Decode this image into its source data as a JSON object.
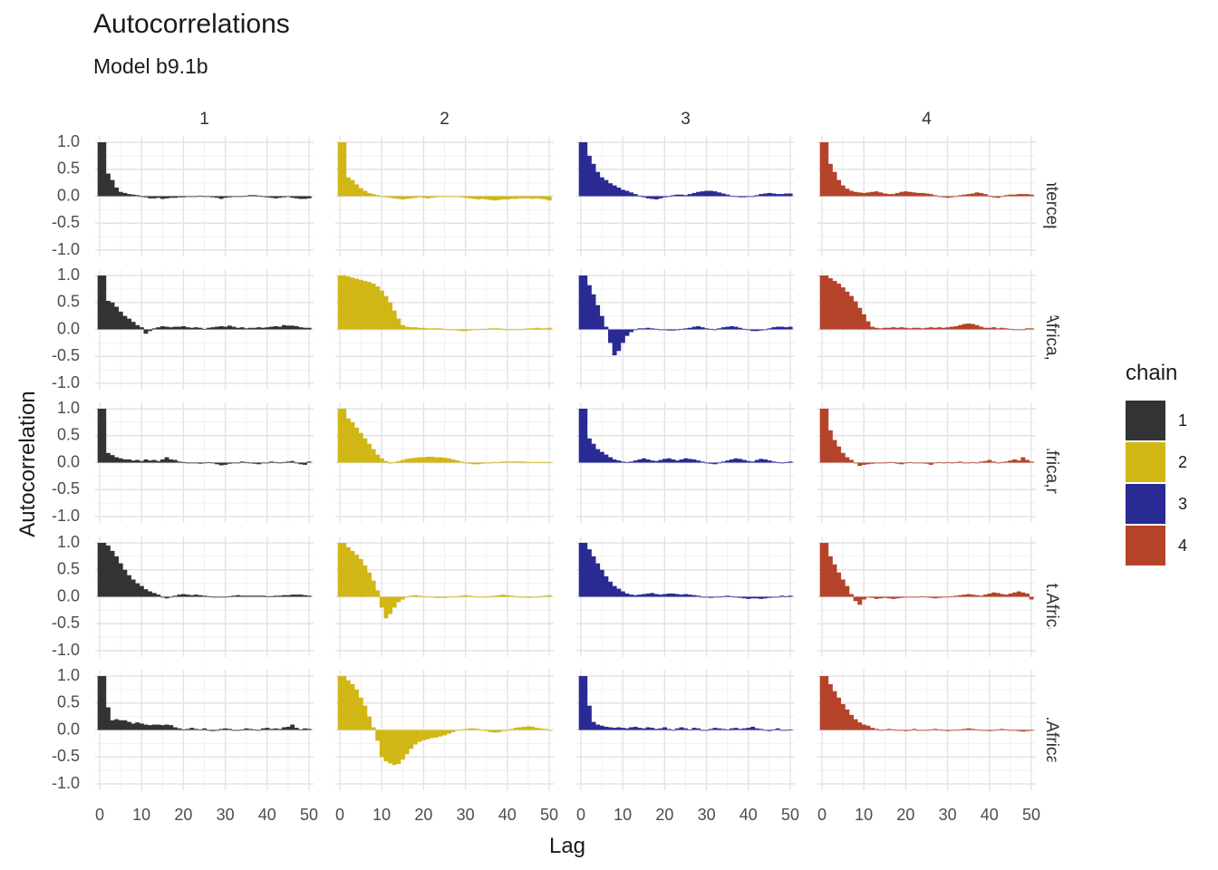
{
  "chart_data": {
    "type": "bar",
    "title": "Autocorrelations",
    "subtitle": "Model b9.1b",
    "xlabel": "Lag",
    "ylabel": "Autocorrelation",
    "xlim": [
      0,
      50
    ],
    "ylim": [
      -1.0,
      1.0
    ],
    "xticks": [
      0,
      10,
      20,
      30,
      40,
      50
    ],
    "yticks": [
      -1.0,
      -0.5,
      0.0,
      0.5,
      1.0
    ],
    "ytick_labels": [
      "-1.0",
      "-0.5",
      "0.0",
      "0.5",
      "1.0"
    ],
    "facet_columns": [
      "1",
      "2",
      "3",
      "4"
    ],
    "facet_rows": [
      "a__Intercept_",
      "rica[Africa,Int",
      "ica[Africa,rug",
      "a[Not.Africa,I",
      "a[Not.Africa,ru"
    ],
    "legend": {
      "title": "chain",
      "entries": [
        {
          "label": "1",
          "color": "#333333"
        },
        {
          "label": "2",
          "color": "#D1B716"
        },
        {
          "label": "3",
          "color": "#2A2A94"
        },
        {
          "label": "4",
          "color": "#B5432A"
        }
      ]
    },
    "note": "Each panel shows autocorrelation values at lags 0-50 for one parameter (row) and one chain (column).",
    "series": [
      [
        [
          1.0,
          1.0,
          0.42,
          0.3,
          0.16,
          0.08,
          0.06,
          0.04,
          0.03,
          0.02,
          0.0,
          -0.02,
          -0.04,
          -0.04,
          -0.03,
          -0.05,
          -0.04,
          -0.03,
          -0.03,
          -0.02,
          -0.02,
          -0.01,
          0.0,
          0.0,
          0.01,
          0.0,
          -0.01,
          -0.02,
          -0.03,
          -0.05,
          -0.03,
          -0.02,
          -0.01,
          -0.01,
          0.0,
          0.01,
          0.02,
          0.02,
          0.01,
          0.0,
          -0.02,
          -0.03,
          -0.04,
          -0.03,
          -0.02,
          -0.01,
          -0.03,
          -0.04,
          -0.05,
          -0.05,
          -0.04
        ],
        [
          1.0,
          1.0,
          0.35,
          0.3,
          0.22,
          0.15,
          0.1,
          0.06,
          0.04,
          0.02,
          0.0,
          -0.02,
          -0.03,
          -0.04,
          -0.05,
          -0.06,
          -0.05,
          -0.04,
          -0.03,
          -0.02,
          -0.03,
          -0.04,
          -0.03,
          -0.02,
          -0.01,
          0.0,
          0.0,
          0.0,
          -0.01,
          -0.02,
          -0.03,
          -0.04,
          -0.05,
          -0.06,
          -0.05,
          -0.06,
          -0.07,
          -0.08,
          -0.07,
          -0.06,
          -0.06,
          -0.05,
          -0.05,
          -0.04,
          -0.04,
          -0.04,
          -0.05,
          -0.04,
          -0.05,
          -0.06,
          -0.08
        ],
        [
          1.0,
          1.0,
          0.75,
          0.6,
          0.45,
          0.35,
          0.3,
          0.24,
          0.2,
          0.16,
          0.12,
          0.1,
          0.07,
          0.04,
          0.01,
          -0.02,
          -0.04,
          -0.05,
          -0.06,
          -0.04,
          -0.02,
          0.0,
          0.02,
          0.03,
          0.03,
          0.02,
          0.04,
          0.06,
          0.08,
          0.09,
          0.1,
          0.1,
          0.09,
          0.07,
          0.05,
          0.03,
          0.01,
          -0.01,
          -0.02,
          -0.02,
          -0.01,
          0.0,
          0.02,
          0.04,
          0.05,
          0.06,
          0.05,
          0.04,
          0.04,
          0.05,
          0.05
        ],
        [
          1.0,
          1.0,
          0.6,
          0.45,
          0.3,
          0.2,
          0.14,
          0.1,
          0.08,
          0.07,
          0.06,
          0.07,
          0.08,
          0.09,
          0.07,
          0.05,
          0.04,
          0.04,
          0.06,
          0.08,
          0.09,
          0.08,
          0.07,
          0.06,
          0.06,
          0.05,
          0.04,
          0.02,
          0.0,
          -0.02,
          -0.03,
          -0.02,
          0.0,
          0.02,
          0.03,
          0.04,
          0.05,
          0.07,
          0.06,
          0.04,
          0.01,
          -0.02,
          -0.03,
          0.0,
          0.02,
          0.03,
          0.03,
          0.04,
          0.04,
          0.04,
          0.03
        ]
      ],
      [
        [
          1.0,
          1.0,
          0.53,
          0.5,
          0.42,
          0.33,
          0.25,
          0.2,
          0.14,
          0.08,
          0.04,
          -0.08,
          -0.03,
          0.02,
          0.04,
          0.06,
          0.05,
          0.04,
          0.05,
          0.05,
          0.06,
          0.04,
          0.03,
          0.04,
          0.03,
          0.01,
          0.03,
          0.04,
          0.05,
          0.06,
          0.05,
          0.07,
          0.05,
          0.03,
          0.04,
          0.02,
          0.03,
          0.03,
          0.04,
          0.03,
          0.04,
          0.05,
          0.06,
          0.05,
          0.08,
          0.07,
          0.07,
          0.06,
          0.04,
          0.03,
          0.03
        ],
        [
          1.0,
          1.0,
          0.98,
          0.96,
          0.94,
          0.92,
          0.9,
          0.88,
          0.85,
          0.8,
          0.72,
          0.62,
          0.5,
          0.35,
          0.2,
          0.08,
          0.05,
          0.04,
          0.04,
          0.03,
          0.03,
          0.02,
          0.02,
          0.02,
          0.02,
          0.01,
          0.0,
          -0.01,
          -0.02,
          -0.03,
          -0.03,
          -0.02,
          -0.01,
          0.0,
          0.01,
          0.01,
          0.02,
          0.02,
          0.02,
          0.01,
          0.0,
          -0.01,
          -0.01,
          0.0,
          0.01,
          0.02,
          0.02,
          0.03,
          0.02,
          0.02,
          0.03
        ],
        [
          1.0,
          1.0,
          0.82,
          0.65,
          0.45,
          0.25,
          0.05,
          -0.25,
          -0.48,
          -0.4,
          -0.25,
          -0.12,
          -0.05,
          0.0,
          0.02,
          0.02,
          0.03,
          0.02,
          0.01,
          0.0,
          -0.01,
          -0.02,
          -0.02,
          -0.01,
          0.01,
          0.02,
          0.03,
          0.05,
          0.06,
          0.04,
          0.02,
          0.01,
          0.0,
          0.02,
          0.04,
          0.05,
          0.06,
          0.05,
          0.03,
          0.01,
          -0.01,
          -0.03,
          -0.03,
          -0.02,
          0.0,
          0.02,
          0.04,
          0.05,
          0.05,
          0.04,
          0.05
        ],
        [
          1.0,
          1.0,
          0.95,
          0.9,
          0.85,
          0.78,
          0.7,
          0.62,
          0.52,
          0.4,
          0.28,
          0.15,
          0.05,
          0.03,
          0.02,
          0.03,
          0.03,
          0.04,
          0.03,
          0.04,
          0.03,
          0.02,
          0.03,
          0.03,
          0.02,
          0.03,
          0.04,
          0.03,
          0.04,
          0.03,
          0.04,
          0.05,
          0.06,
          0.08,
          0.1,
          0.11,
          0.1,
          0.08,
          0.05,
          0.03,
          0.03,
          0.04,
          0.02,
          0.03,
          0.02,
          0.01,
          0.0,
          -0.01,
          0.0,
          0.02,
          0.02
        ]
      ],
      [
        [
          1.0,
          1.0,
          0.18,
          0.14,
          0.1,
          0.08,
          0.06,
          0.06,
          0.04,
          0.05,
          0.03,
          0.06,
          0.04,
          0.05,
          0.03,
          0.06,
          0.1,
          0.06,
          0.05,
          0.02,
          0.01,
          0.0,
          -0.01,
          0.0,
          -0.02,
          0.0,
          0.01,
          -0.01,
          -0.03,
          -0.05,
          -0.04,
          -0.02,
          -0.01,
          0.0,
          0.02,
          0.01,
          -0.01,
          -0.02,
          -0.03,
          -0.01,
          0.0,
          0.02,
          0.01,
          0.0,
          0.01,
          0.02,
          0.03,
          -0.01,
          -0.03,
          -0.04,
          0.02
        ],
        [
          1.0,
          1.0,
          0.82,
          0.75,
          0.65,
          0.55,
          0.45,
          0.35,
          0.25,
          0.15,
          0.08,
          0.03,
          0.0,
          0.01,
          0.03,
          0.05,
          0.07,
          0.08,
          0.09,
          0.1,
          0.1,
          0.11,
          0.11,
          0.1,
          0.1,
          0.09,
          0.08,
          0.06,
          0.04,
          0.02,
          0.0,
          -0.02,
          -0.03,
          -0.03,
          -0.02,
          -0.01,
          0.0,
          0.01,
          0.01,
          0.02,
          0.02,
          0.02,
          0.02,
          0.02,
          0.02,
          0.01,
          0.01,
          0.01,
          0.01,
          0.01,
          0.01
        ],
        [
          1.0,
          1.0,
          0.45,
          0.35,
          0.25,
          0.2,
          0.15,
          0.1,
          0.06,
          0.04,
          0.02,
          0.01,
          0.02,
          0.04,
          0.06,
          0.08,
          0.06,
          0.04,
          0.03,
          0.05,
          0.07,
          0.08,
          0.06,
          0.04,
          0.06,
          0.08,
          0.07,
          0.06,
          0.04,
          0.02,
          0.0,
          -0.02,
          -0.03,
          -0.01,
          0.02,
          0.04,
          0.06,
          0.08,
          0.07,
          0.05,
          0.03,
          0.02,
          0.05,
          0.07,
          0.06,
          0.04,
          0.02,
          0.01,
          0.0,
          0.01,
          0.02
        ],
        [
          1.0,
          1.0,
          0.6,
          0.42,
          0.3,
          0.18,
          0.1,
          0.05,
          0.0,
          -0.06,
          -0.04,
          -0.03,
          -0.02,
          -0.01,
          0.0,
          0.0,
          0.01,
          0.01,
          -0.02,
          -0.03,
          0.0,
          0.01,
          0.0,
          -0.01,
          0.0,
          -0.02,
          -0.04,
          -0.01,
          0.01,
          0.0,
          0.01,
          0.0,
          0.01,
          0.02,
          -0.01,
          0.0,
          0.01,
          0.0,
          0.02,
          0.03,
          0.05,
          0.02,
          0.0,
          0.01,
          0.02,
          0.04,
          0.06,
          0.04,
          0.1,
          0.05,
          0.02
        ]
      ],
      [
        [
          1.0,
          1.0,
          0.95,
          0.85,
          0.75,
          0.62,
          0.5,
          0.4,
          0.32,
          0.25,
          0.2,
          0.14,
          0.1,
          0.07,
          0.04,
          0.0,
          -0.03,
          -0.01,
          0.02,
          0.04,
          0.05,
          0.04,
          0.03,
          0.04,
          0.03,
          0.02,
          0.01,
          0.0,
          -0.01,
          -0.01,
          0.0,
          0.01,
          0.02,
          0.03,
          0.02,
          0.02,
          0.02,
          0.02,
          0.02,
          0.02,
          0.01,
          0.01,
          0.02,
          0.02,
          0.03,
          0.03,
          0.04,
          0.04,
          0.04,
          0.03,
          0.02
        ],
        [
          1.0,
          1.0,
          0.92,
          0.85,
          0.78,
          0.7,
          0.58,
          0.45,
          0.3,
          0.12,
          -0.2,
          -0.4,
          -0.32,
          -0.2,
          -0.1,
          -0.05,
          0.0,
          0.02,
          0.03,
          0.02,
          0.01,
          0.0,
          -0.01,
          -0.02,
          -0.02,
          -0.02,
          -0.01,
          0.0,
          0.01,
          0.02,
          0.03,
          0.02,
          0.01,
          0.0,
          -0.01,
          0.0,
          0.01,
          0.02,
          0.03,
          0.04,
          0.03,
          0.02,
          0.01,
          0.0,
          -0.01,
          -0.02,
          -0.01,
          0.0,
          0.01,
          0.02,
          0.03
        ],
        [
          1.0,
          1.0,
          0.88,
          0.75,
          0.62,
          0.5,
          0.38,
          0.28,
          0.2,
          0.15,
          0.1,
          0.06,
          0.04,
          0.03,
          0.04,
          0.05,
          0.06,
          0.07,
          0.05,
          0.04,
          0.05,
          0.06,
          0.06,
          0.05,
          0.04,
          0.05,
          0.04,
          0.03,
          0.02,
          0.0,
          -0.01,
          -0.02,
          -0.01,
          0.0,
          0.01,
          0.02,
          0.01,
          0.0,
          -0.02,
          -0.03,
          -0.04,
          -0.03,
          -0.03,
          -0.04,
          -0.03,
          -0.02,
          -0.01,
          0.0,
          0.02,
          0.01,
          0.02
        ],
        [
          1.0,
          1.0,
          0.75,
          0.6,
          0.45,
          0.32,
          0.2,
          0.05,
          -0.08,
          -0.15,
          -0.05,
          0.0,
          -0.02,
          -0.04,
          -0.03,
          -0.02,
          -0.03,
          -0.04,
          -0.03,
          -0.02,
          -0.01,
          0.0,
          -0.01,
          0.0,
          0.01,
          0.0,
          -0.02,
          -0.03,
          -0.02,
          -0.01,
          0.0,
          0.01,
          0.02,
          0.03,
          0.04,
          0.05,
          0.04,
          0.03,
          0.02,
          0.04,
          0.06,
          0.08,
          0.07,
          0.05,
          0.04,
          0.06,
          0.08,
          0.1,
          0.08,
          0.06,
          -0.05
        ]
      ],
      [
        [
          1.0,
          1.0,
          0.42,
          0.18,
          0.2,
          0.18,
          0.18,
          0.15,
          0.12,
          0.14,
          0.12,
          0.1,
          0.09,
          0.1,
          0.1,
          0.09,
          0.1,
          0.09,
          0.05,
          0.03,
          0.01,
          0.02,
          0.04,
          0.02,
          0.01,
          0.03,
          0.0,
          -0.02,
          -0.01,
          0.02,
          0.03,
          0.02,
          0.0,
          -0.01,
          0.01,
          0.03,
          0.02,
          0.01,
          0.0,
          0.03,
          0.04,
          0.02,
          0.03,
          0.02,
          0.05,
          0.06,
          0.1,
          0.04,
          0.01,
          0.03,
          0.02
        ],
        [
          1.0,
          1.0,
          0.92,
          0.85,
          0.75,
          0.6,
          0.45,
          0.25,
          0.05,
          -0.2,
          -0.5,
          -0.58,
          -0.62,
          -0.65,
          -0.63,
          -0.55,
          -0.45,
          -0.35,
          -0.27,
          -0.22,
          -0.19,
          -0.17,
          -0.15,
          -0.14,
          -0.12,
          -0.1,
          -0.07,
          -0.04,
          -0.01,
          0.01,
          0.02,
          0.03,
          0.03,
          0.02,
          0.0,
          -0.02,
          -0.04,
          -0.05,
          -0.04,
          -0.02,
          0.0,
          0.02,
          0.04,
          0.05,
          0.06,
          0.07,
          0.06,
          0.04,
          0.03,
          0.02,
          0.0
        ],
        [
          1.0,
          1.0,
          0.45,
          0.15,
          0.1,
          0.08,
          0.06,
          0.05,
          0.04,
          0.05,
          0.04,
          0.03,
          0.05,
          0.06,
          0.04,
          0.03,
          0.05,
          0.04,
          0.02,
          0.03,
          0.05,
          0.02,
          0.0,
          0.03,
          0.05,
          0.03,
          0.01,
          0.04,
          0.03,
          0.0,
          -0.01,
          0.02,
          0.04,
          0.03,
          0.02,
          0.01,
          0.03,
          0.04,
          0.02,
          0.03,
          0.04,
          0.06,
          0.03,
          0.02,
          0.0,
          -0.02,
          0.01,
          0.03,
          -0.01,
          0.0,
          0.01
        ],
        [
          1.0,
          1.0,
          0.85,
          0.72,
          0.6,
          0.48,
          0.38,
          0.28,
          0.2,
          0.14,
          0.1,
          0.08,
          0.04,
          0.02,
          0.0,
          0.01,
          0.02,
          0.01,
          0.0,
          -0.01,
          -0.02,
          0.0,
          0.02,
          0.0,
          -0.01,
          0.0,
          0.01,
          0.02,
          0.01,
          0.0,
          -0.02,
          -0.01,
          0.0,
          0.01,
          0.02,
          0.03,
          0.02,
          0.01,
          0.0,
          -0.01,
          -0.02,
          0.0,
          0.01,
          0.02,
          0.01,
          0.0,
          -0.01,
          -0.02,
          -0.03,
          -0.02,
          -0.01
        ]
      ]
    ]
  }
}
